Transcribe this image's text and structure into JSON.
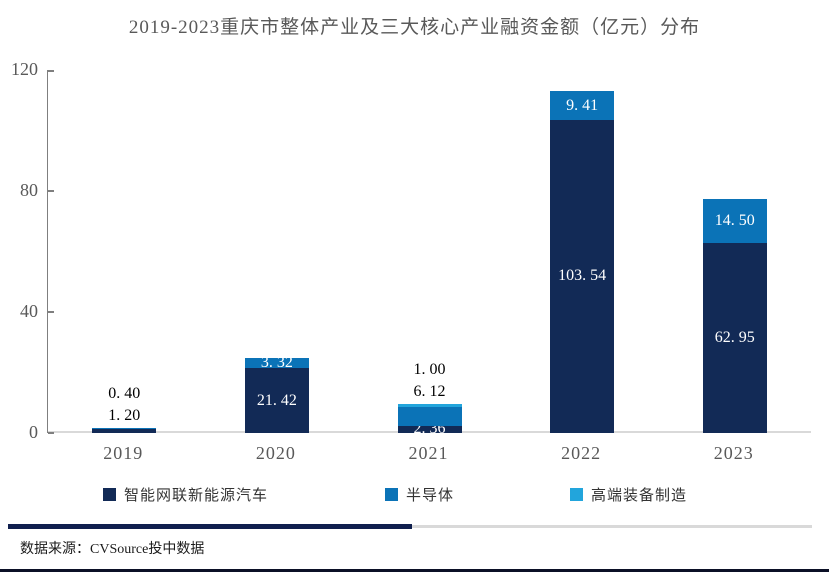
{
  "title": "2019-2023重庆市整体产业及三大核心产业融资金额（亿元）分布",
  "source_note": "数据来源：CVSource投中数据",
  "colors": {
    "auto_navy": "#122a56",
    "semiconductor_blue": "#0b73b7",
    "equipment_cyan": "#22a5dc",
    "axis_gray": "#7f7f7f",
    "baseline_gray": "#d9d9d9",
    "tick_text_gray": "#595959",
    "divider_navy": "#101f4e",
    "bottom_border": "#0b1026"
  },
  "chart_data": {
    "type": "bar",
    "stacked": true,
    "title": "2019-2023重庆市整体产业及三大核心产业融资金额（亿元）分布",
    "xlabel": "",
    "ylabel": "",
    "ylim": [
      0,
      120
    ],
    "yticks": [
      0,
      40,
      80,
      120
    ],
    "grid": false,
    "legend_position": "bottom",
    "categories": [
      "2019",
      "2020",
      "2021",
      "2022",
      "2023"
    ],
    "series": [
      {
        "name": "智能网联新能源汽车",
        "color": "#122a56",
        "values": [
          1.2,
          21.42,
          2.36,
          103.54,
          62.95
        ],
        "labels": [
          "1. 20",
          "21. 42",
          "2. 36",
          "103. 54",
          "62. 95"
        ],
        "label_pos": [
          "outside",
          "inside",
          "inside",
          "inside",
          "inside"
        ]
      },
      {
        "name": "半导体",
        "color": "#0b73b7",
        "values": [
          0.4,
          3.32,
          6.12,
          9.41,
          14.5
        ],
        "labels": [
          "0. 40",
          "3. 32",
          "6. 12",
          "9. 41",
          "14. 50"
        ],
        "label_pos": [
          "outside",
          "inside",
          "outside",
          "inside",
          "inside"
        ]
      },
      {
        "name": "高端装备制造",
        "color": "#22a5dc",
        "values": [
          null,
          null,
          1.0,
          null,
          null
        ],
        "labels": [
          null,
          null,
          "1. 00",
          null,
          null
        ],
        "label_pos": [
          null,
          null,
          "outside",
          null,
          null
        ]
      }
    ]
  }
}
